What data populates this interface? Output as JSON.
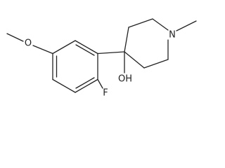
{
  "atoms": {
    "oxygen": "O",
    "fluorine": "F",
    "hydroxyl": "OH",
    "nitrogen": "N"
  }
}
